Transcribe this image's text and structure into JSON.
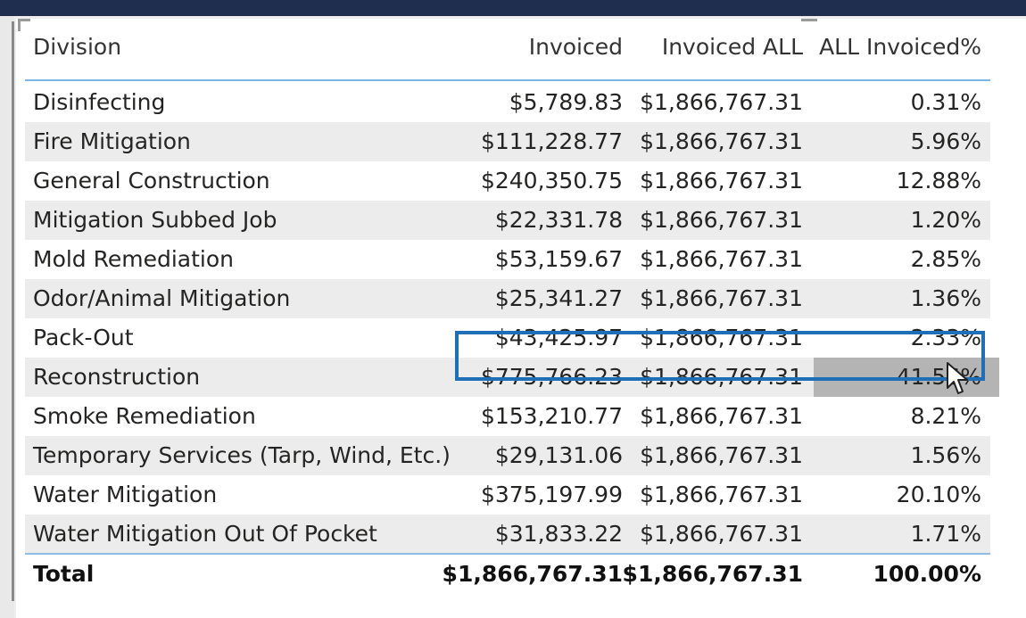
{
  "table": {
    "columns": [
      "Division",
      "Invoiced",
      "Invoiced ALL",
      "ALL Invoiced%"
    ],
    "rows": [
      {
        "division": "Disinfecting",
        "invoiced": "$5,789.83",
        "invoiced_all": "$1,866,767.31",
        "pct": "0.31%"
      },
      {
        "division": "Fire Mitigation",
        "invoiced": "$111,228.77",
        "invoiced_all": "$1,866,767.31",
        "pct": "5.96%"
      },
      {
        "division": "General Construction",
        "invoiced": "$240,350.75",
        "invoiced_all": "$1,866,767.31",
        "pct": "12.88%"
      },
      {
        "division": "Mitigation Subbed Job",
        "invoiced": "$22,331.78",
        "invoiced_all": "$1,866,767.31",
        "pct": "1.20%"
      },
      {
        "division": "Mold Remediation",
        "invoiced": "$53,159.67",
        "invoiced_all": "$1,866,767.31",
        "pct": "2.85%"
      },
      {
        "division": "Odor/Animal Mitigation",
        "invoiced": "$25,341.27",
        "invoiced_all": "$1,866,767.31",
        "pct": "1.36%"
      },
      {
        "division": "Pack-Out",
        "invoiced": "$43,425.97",
        "invoiced_all": "$1,866,767.31",
        "pct": "2.33%"
      },
      {
        "division": "Reconstruction",
        "invoiced": "$775,766.23",
        "invoiced_all": "$1,866,767.31",
        "pct": "41.56%"
      },
      {
        "division": "Smoke Remediation",
        "invoiced": "$153,210.77",
        "invoiced_all": "$1,866,767.31",
        "pct": "8.21%"
      },
      {
        "division": "Temporary Services (Tarp, Wind, Etc.)",
        "invoiced": "$29,131.06",
        "invoiced_all": "$1,866,767.31",
        "pct": "1.56%"
      },
      {
        "division": "Water Mitigation",
        "invoiced": "$375,197.99",
        "invoiced_all": "$1,866,767.31",
        "pct": "20.10%"
      },
      {
        "division": "Water Mitigation Out Of Pocket",
        "invoiced": "$31,833.22",
        "invoiced_all": "$1,866,767.31",
        "pct": "1.71%"
      }
    ],
    "total": {
      "label": "Total",
      "invoiced": "$1,866,767.31",
      "invoiced_all": "$1,866,767.31",
      "pct": "100.00%"
    },
    "selected_row_index": 7
  },
  "colors": {
    "selection_border": "#1f6fb8",
    "header_rule": "#7fb3e0",
    "row_shade": "#ececec",
    "cell_highlight": "#b4b4b4",
    "title_bar": "#1f2d4f"
  },
  "icons": {
    "cursor": "mouse-pointer-icon"
  }
}
